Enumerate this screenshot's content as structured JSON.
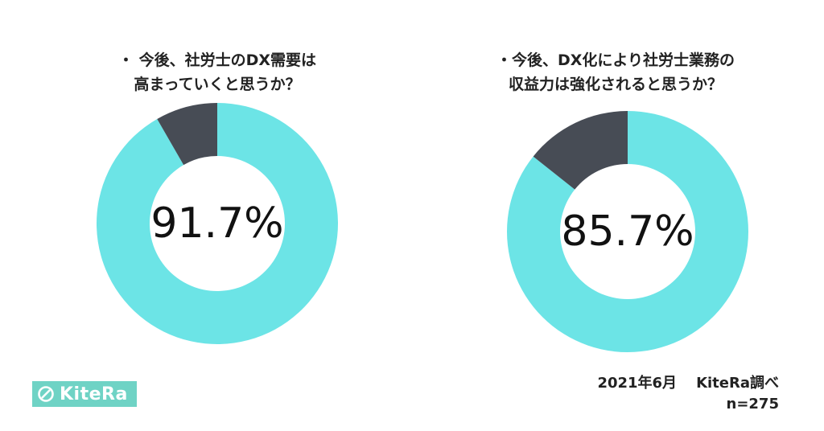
{
  "chart_data": [
    {
      "type": "pie",
      "title_lines": [
        "・ 今後、社労士のDX需要は",
        "高まっていくと思うか？"
      ],
      "center_label": "91.7%",
      "slices": [
        {
          "value": 91.7,
          "color": "#6ce4e6"
        },
        {
          "value": 8.3,
          "color": "#474c55"
        }
      ]
    },
    {
      "type": "pie",
      "title_lines": [
        "・今後、DX化により社労士業務の",
        "収益力は強化されると思うか？"
      ],
      "center_label": "85.7%",
      "slices": [
        {
          "value": 85.7,
          "color": "#6ce4e6"
        },
        {
          "value": 14.3,
          "color": "#474c55"
        }
      ]
    }
  ],
  "logo": {
    "text": "KiteRa",
    "color": "#6fd3c5"
  },
  "footer": {
    "date": "2021年6月",
    "source": "KiteRa調べ",
    "sample": "n=275"
  }
}
